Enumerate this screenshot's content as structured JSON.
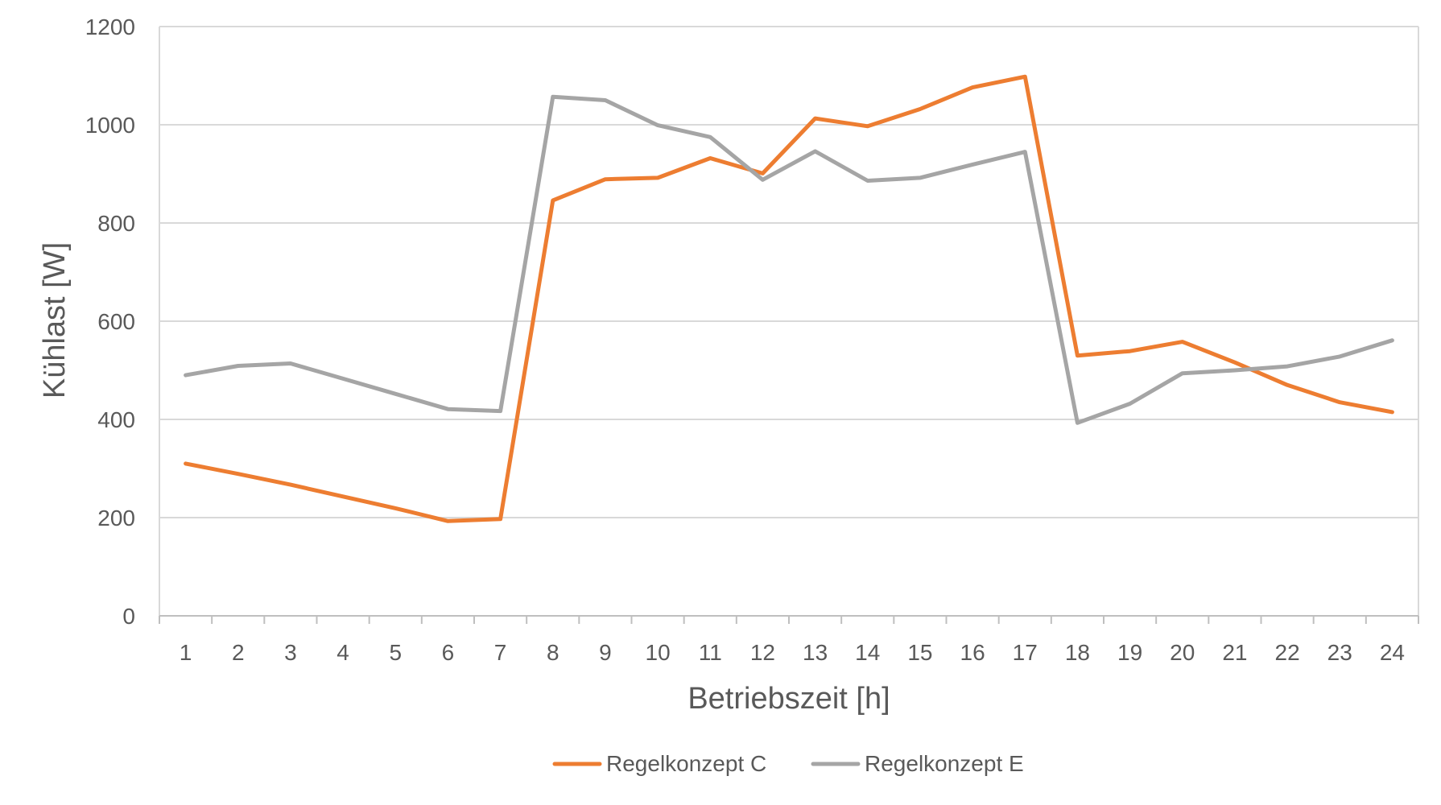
{
  "chart_data": {
    "type": "line",
    "title": "",
    "xlabel": "Betriebszeit [h]",
    "ylabel": "Kühlast [W]",
    "categories": [
      "1",
      "2",
      "3",
      "4",
      "5",
      "6",
      "7",
      "8",
      "9",
      "10",
      "11",
      "12",
      "13",
      "14",
      "15",
      "16",
      "17",
      "18",
      "19",
      "20",
      "21",
      "22",
      "23",
      "24"
    ],
    "ylim": [
      0,
      1200
    ],
    "yticks": [
      0,
      200,
      400,
      600,
      800,
      1000,
      1200
    ],
    "grid": "horizontal",
    "legend_position": "bottom",
    "series": [
      {
        "name": "Regelkonzept C",
        "color": "#ED7D31",
        "values": [
          310,
          289,
          267,
          243,
          219,
          193,
          197,
          846,
          889,
          892,
          932,
          901,
          1013,
          997,
          1032,
          1076,
          1098,
          530,
          539,
          558,
          516,
          470,
          435,
          415
        ]
      },
      {
        "name": "Regelkonzept E",
        "color": "#A5A5A5",
        "values": [
          490,
          509,
          514,
          483,
          452,
          421,
          417,
          1057,
          1050,
          999,
          975,
          888,
          946,
          886,
          892,
          919,
          945,
          393,
          432,
          494,
          500,
          508,
          528,
          561
        ]
      }
    ]
  },
  "colors": {
    "gridline": "#D9D9D9",
    "axis_text": "#595959"
  }
}
